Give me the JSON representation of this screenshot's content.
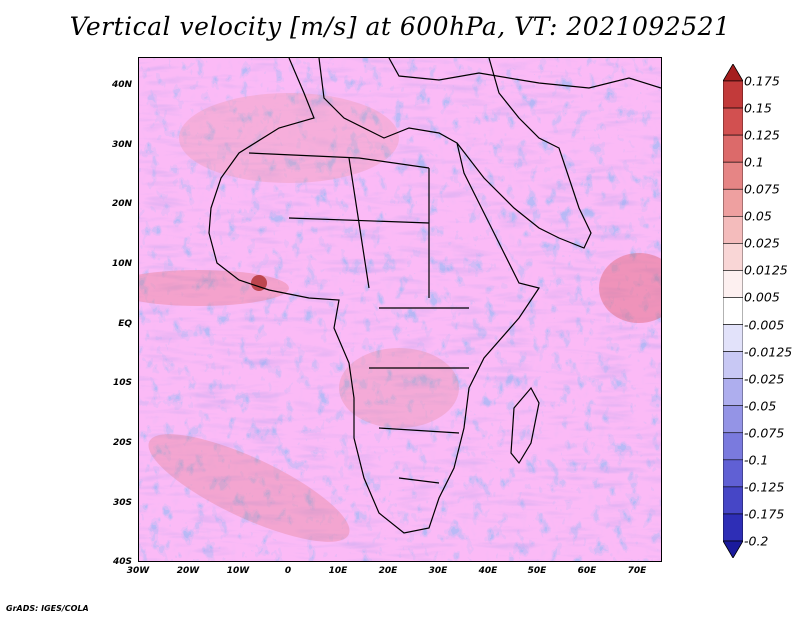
{
  "title": "Vertical velocity [m/s] at 600hPa, VT: 2021092521",
  "credit": "GrADS: IGES/COLA",
  "axes": {
    "lat_labels": [
      "40N",
      "30N",
      "20N",
      "10N",
      "EQ",
      "10S",
      "20S",
      "30S",
      "40S"
    ],
    "lon_labels": [
      "30W",
      "20W",
      "10W",
      "0",
      "10E",
      "20E",
      "30E",
      "40E",
      "50E",
      "60E",
      "70E"
    ]
  },
  "map": {
    "lon_range": [
      -30,
      75
    ],
    "lat_range": [
      -40,
      45
    ],
    "field": "Vertical velocity",
    "units": "m/s",
    "level": "600hPa"
  },
  "colorbar": {
    "labels": [
      "0.175",
      "0.15",
      "0.125",
      "0.1",
      "0.075",
      "0.05",
      "0.025",
      "0.0125",
      "0.005",
      "-0.005",
      "-0.0125",
      "-0.025",
      "-0.05",
      "-0.075",
      "-0.1",
      "-0.125",
      "-0.175",
      "-0.2"
    ],
    "colors": [
      "#a51e1e",
      "#c23a3a",
      "#d25050",
      "#dc6a6a",
      "#e68585",
      "#eea0a0",
      "#f4bcbc",
      "#f9d6d6",
      "#fdf0f0",
      "#ffffff",
      "#e2e2fa",
      "#c8c8f4",
      "#aeaeee",
      "#9494e6",
      "#7a7ade",
      "#6060d4",
      "#4646c6",
      "#2e2eb6",
      "#1a1a9c"
    ]
  }
}
